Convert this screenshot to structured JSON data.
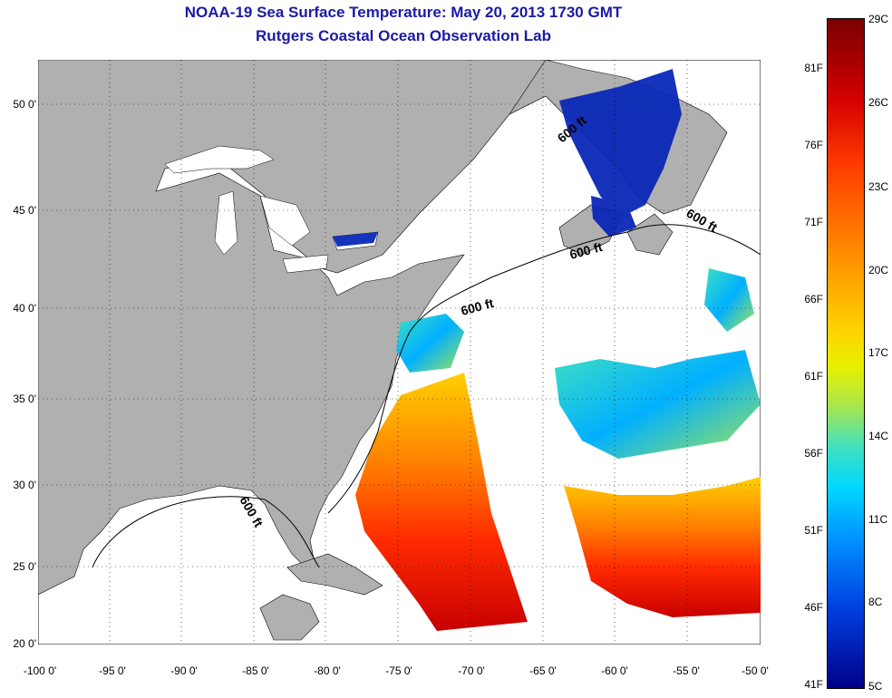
{
  "title_line1": "NOAA-19 Sea Surface Temperature:  May 20, 2013 1730 GMT",
  "title_line2": "Rutgers Coastal Ocean Observation Lab",
  "lat_labels": [
    "50 0'",
    "45 0'",
    "40 0'",
    "35 0'",
    "30 0'",
    "25 0'",
    "20 0'"
  ],
  "lon_labels": [
    "-100 0'",
    "-95 0'",
    "-90 0'",
    "-85 0'",
    "-80 0'",
    "-75 0'",
    "-70 0'",
    "-65 0'",
    "-60 0'",
    "-55 0'",
    "-50 0'"
  ],
  "contour_labels": [
    "600 ft",
    "600 ft",
    "600 ft",
    "600 ft",
    "600 ft"
  ],
  "colorbar": {
    "fahrenheit": [
      "81F",
      "76F",
      "71F",
      "66F",
      "61F",
      "56F",
      "51F",
      "46F",
      "41F"
    ],
    "celsius": [
      "29C",
      "26C",
      "23C",
      "20C",
      "17C",
      "14C",
      "11C",
      "8C",
      "5C"
    ]
  },
  "colors": {
    "land": "#b0b0b0",
    "no_data": "#ffffff",
    "title": "#1a1aa6",
    "warm": "#d40000",
    "cold": "#00008a"
  }
}
